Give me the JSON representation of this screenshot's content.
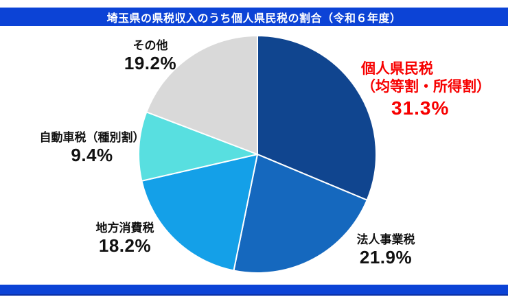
{
  "header": {
    "title": "埼玉県の県税収入のうち個人県民税の割合（令和６年度）"
  },
  "theme": {
    "bar_color": "#0c43d6",
    "background": "#ffffff",
    "label_color": "#111111",
    "highlight_color": "#f70000",
    "slice_border_color": "#ffffff"
  },
  "chart_data": {
    "type": "pie",
    "title": "埼玉県の県税収入のうち個人県民税の割合（令和６年度）",
    "units": "%",
    "direction": "clockwise",
    "start_angle_deg": 0,
    "legend_position": "none",
    "slices": [
      {
        "label": "個人県民税（均等割・所得割）",
        "value": 31.3,
        "color": "#10458f"
      },
      {
        "label": "法人事業税",
        "value": 21.9,
        "color": "#1568be"
      },
      {
        "label": "地方消費税",
        "value": 18.2,
        "color": "#14a0e8"
      },
      {
        "label": "自動車税（種別割）",
        "value": 9.4,
        "color": "#58dfe0"
      },
      {
        "label": "その他",
        "value": 19.2,
        "color": "#d9d9d9"
      }
    ]
  },
  "labels": {
    "personal": {
      "line1": "個人県民税",
      "line2": "（均等割・所得割）",
      "pct": "31.3%"
    },
    "corporate": {
      "name": "法人事業税",
      "pct": "21.9%"
    },
    "consumption": {
      "name": "地方消費税",
      "pct": "18.2%"
    },
    "car": {
      "name": "自動車税（種別割）",
      "pct": "9.4%"
    },
    "other": {
      "name": "その他",
      "pct": "19.2%"
    }
  }
}
